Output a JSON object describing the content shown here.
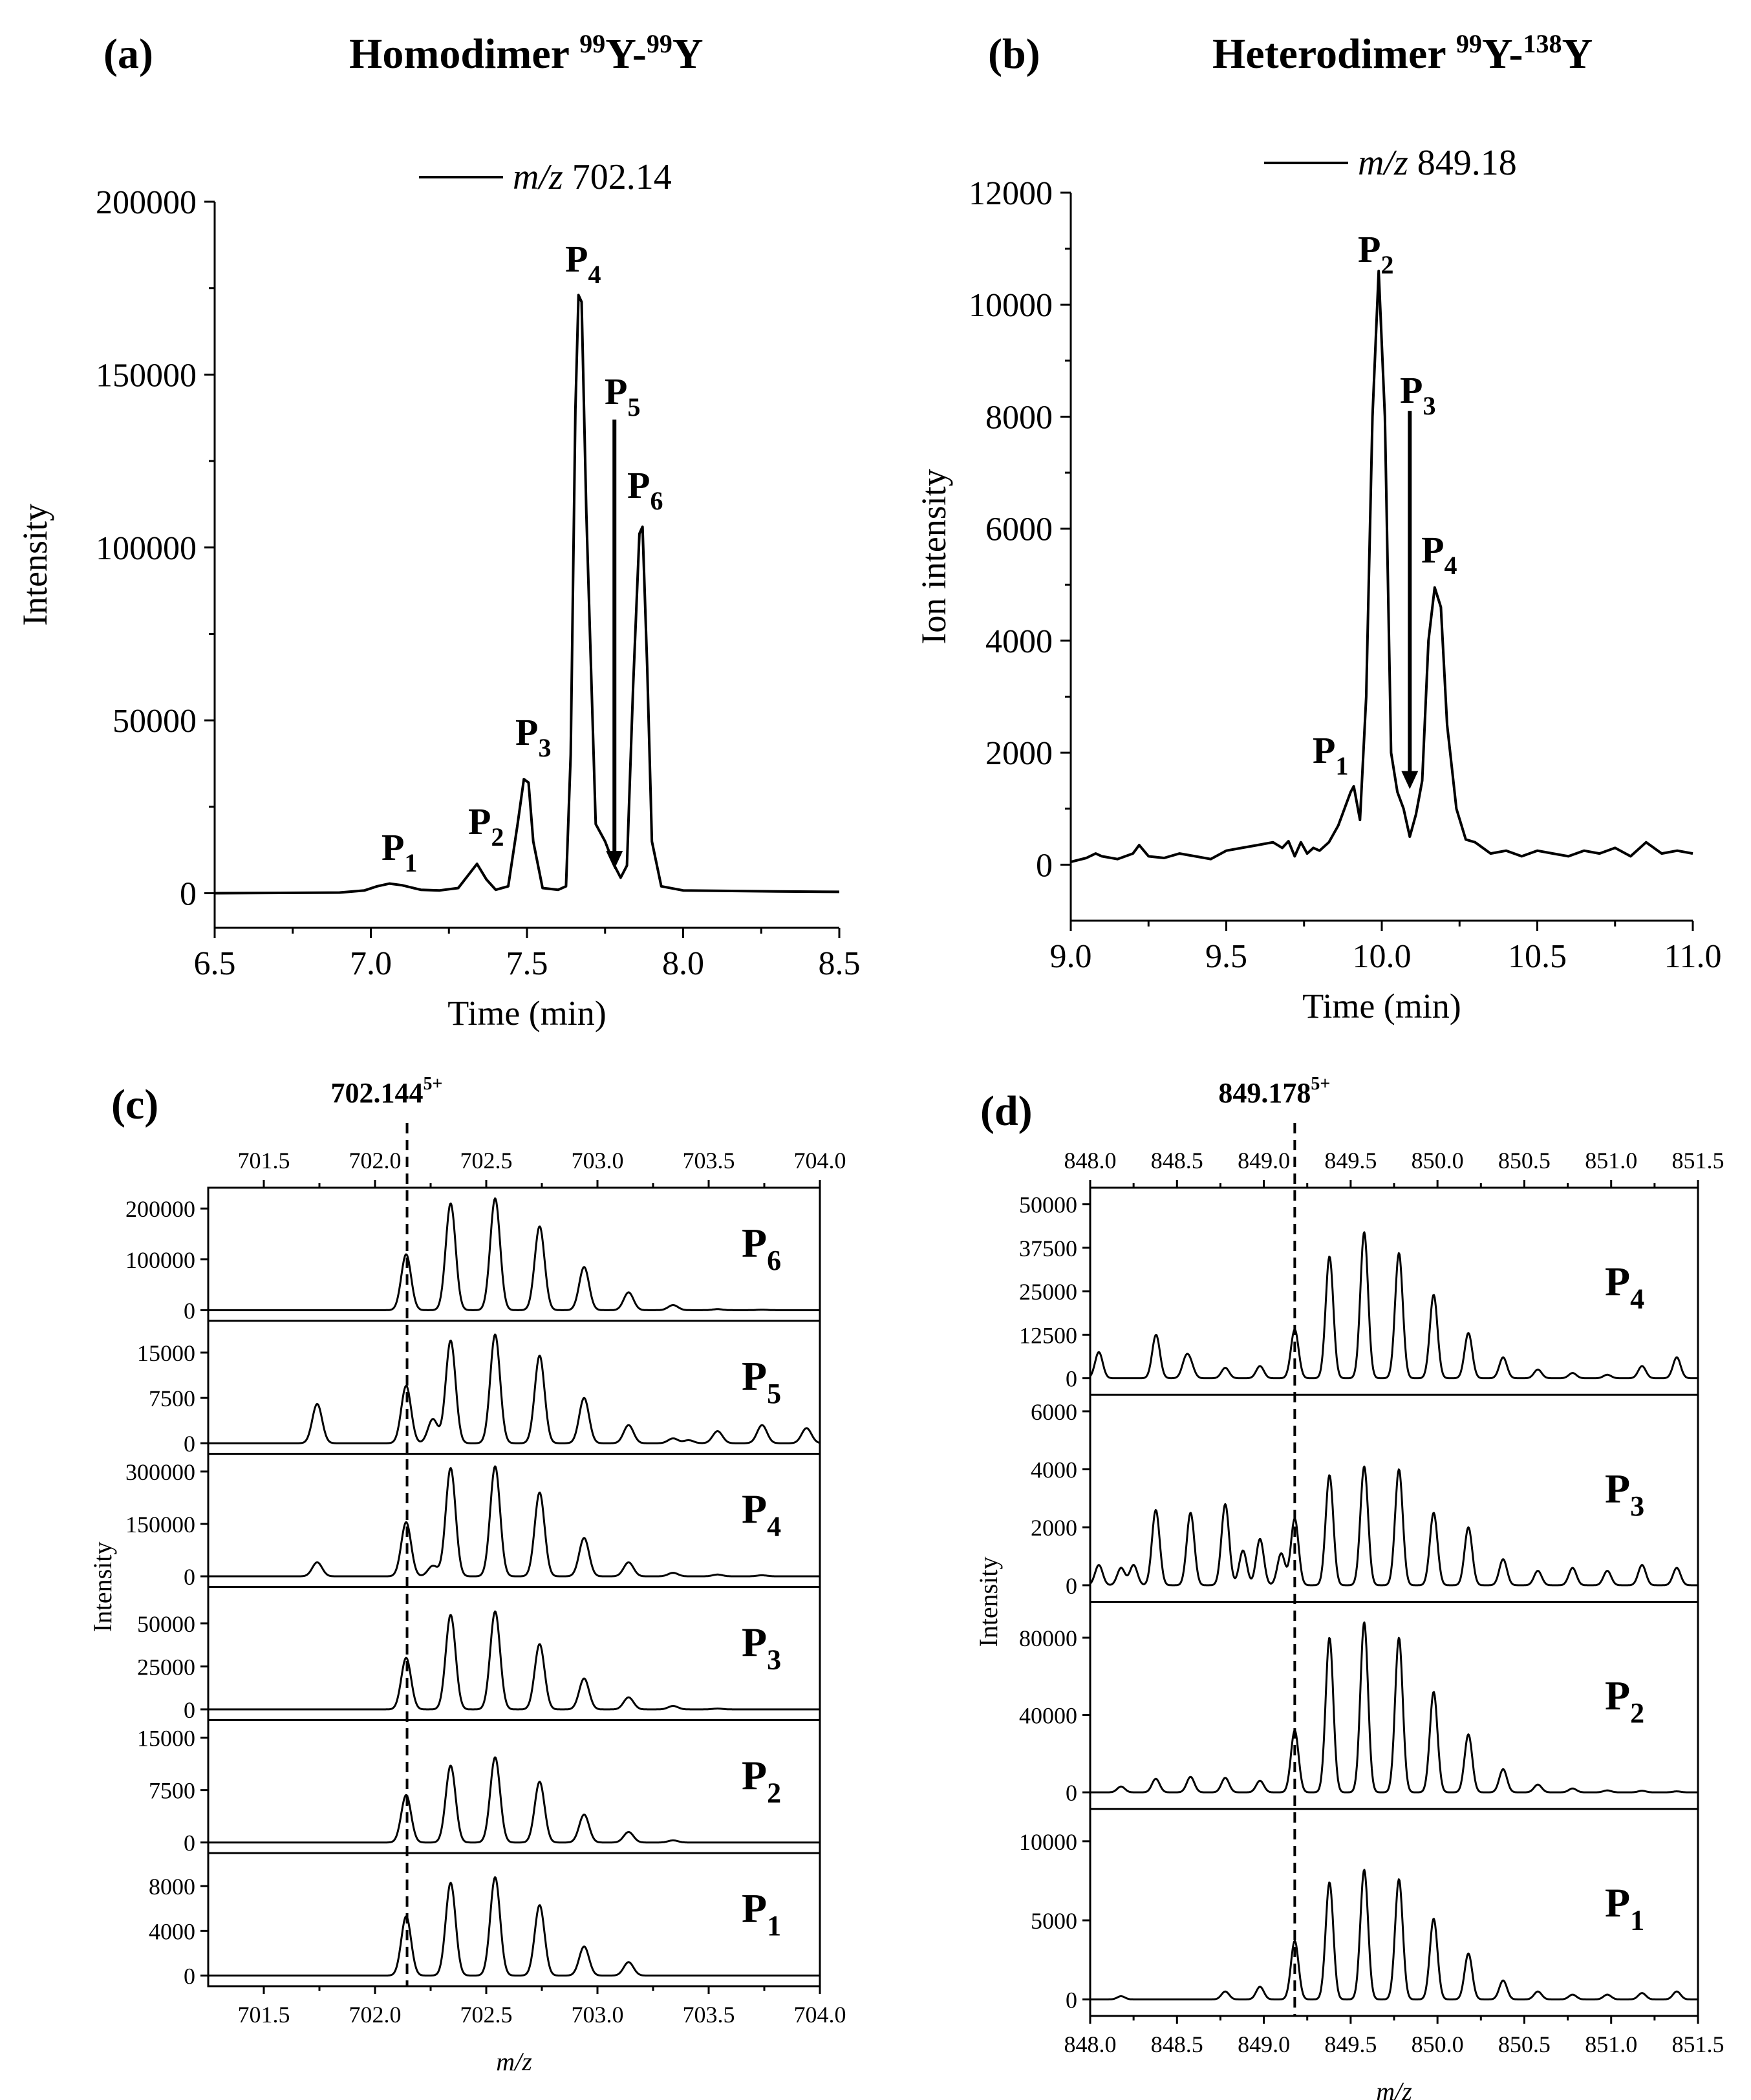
{
  "chart_data": [
    {
      "id": "a",
      "panel_label": "(a)",
      "type": "line",
      "title": {
        "prefix": "Homodimer ",
        "iso1": "99",
        "mid": "Y-",
        "iso2": "99",
        "suffix": "Y"
      },
      "xlabel": "Time (min)",
      "ylabel": "Intensity",
      "xlim": [
        6.5,
        8.5
      ],
      "ylim": [
        -10000,
        200000
      ],
      "xticks": [
        "6.5",
        "7.0",
        "7.5",
        "8.0",
        "8.5"
      ],
      "yticks": [
        "0",
        "50000",
        "100000",
        "150000",
        "200000"
      ],
      "legend": {
        "prefix": "m/z",
        "value": "702.14",
        "position": "top-center"
      },
      "series": [
        {
          "name": "m/z 702.14",
          "x": [
            6.5,
            6.9,
            6.98,
            7.02,
            7.06,
            7.1,
            7.16,
            7.22,
            7.28,
            7.31,
            7.34,
            7.37,
            7.4,
            7.44,
            7.47,
            7.49,
            7.505,
            7.52,
            7.55,
            7.6,
            7.625,
            7.64,
            7.655,
            7.665,
            7.675,
            7.69,
            7.72,
            7.75,
            7.78,
            7.8,
            7.82,
            7.84,
            7.86,
            7.87,
            7.885,
            7.9,
            7.93,
            8.0,
            8.3,
            8.5
          ],
          "y": [
            0,
            200,
            800,
            2000,
            2800,
            2300,
            1000,
            800,
            1500,
            5000,
            8500,
            4000,
            1000,
            2000,
            20000,
            33000,
            32000,
            15000,
            1500,
            1000,
            2000,
            40000,
            140000,
            173000,
            171000,
            110000,
            20000,
            15000,
            8000,
            4500,
            8000,
            60000,
            104000,
            106000,
            65000,
            15000,
            2000,
            800,
            500,
            400
          ]
        }
      ],
      "annotations": [
        {
          "label": "P",
          "sub": "1",
          "x": 7.06
        },
        {
          "label": "P",
          "sub": "2",
          "x": 7.34
        },
        {
          "label": "P",
          "sub": "3",
          "x": 7.5
        },
        {
          "label": "P",
          "sub": "4",
          "x": 7.67
        },
        {
          "label": "P",
          "sub": "5",
          "x": 7.78
        },
        {
          "label": "P",
          "sub": "6",
          "x": 7.86
        }
      ],
      "arrow": {
        "x": 7.78,
        "from_y": 137000,
        "to_y": 7000
      }
    },
    {
      "id": "b",
      "panel_label": "(b)",
      "type": "line",
      "title": {
        "prefix": "Heterodimer ",
        "iso1": "99",
        "mid": "Y-",
        "iso2": "138",
        "suffix": "Y"
      },
      "xlabel": "Time (min)",
      "ylabel": "Ion intensity",
      "xlim": [
        9.0,
        11.0
      ],
      "ylim": [
        -1000,
        12000
      ],
      "xticks": [
        "9.0",
        "9.5",
        "10.0",
        "10.5",
        "11.0"
      ],
      "yticks": [
        "0",
        "2000",
        "4000",
        "6000",
        "8000",
        "10000",
        "12000"
      ],
      "legend": {
        "prefix": "m/z",
        "value": "849.18",
        "position": "top-center"
      },
      "series": [
        {
          "name": "m/z 849.18",
          "x": [
            9.0,
            9.05,
            9.08,
            9.1,
            9.15,
            9.2,
            9.22,
            9.25,
            9.3,
            9.35,
            9.4,
            9.45,
            9.5,
            9.55,
            9.6,
            9.65,
            9.68,
            9.7,
            9.72,
            9.74,
            9.76,
            9.78,
            9.8,
            9.83,
            9.86,
            9.88,
            9.9,
            9.91,
            9.93,
            9.95,
            9.97,
            9.99,
            10.01,
            10.03,
            10.05,
            10.07,
            10.09,
            10.11,
            10.13,
            10.15,
            10.17,
            10.19,
            10.21,
            10.24,
            10.27,
            10.3,
            10.35,
            10.4,
            10.45,
            10.5,
            10.55,
            10.6,
            10.65,
            10.7,
            10.75,
            10.8,
            10.85,
            10.9,
            10.95,
            11.0
          ],
          "y": [
            50,
            120,
            200,
            150,
            100,
            200,
            350,
            150,
            120,
            200,
            150,
            100,
            250,
            300,
            350,
            400,
            300,
            420,
            150,
            400,
            200,
            300,
            250,
            400,
            700,
            1000,
            1300,
            1400,
            800,
            3000,
            8000,
            10600,
            8000,
            2000,
            1300,
            1000,
            500,
            900,
            1500,
            4000,
            4950,
            4600,
            2500,
            1000,
            450,
            400,
            200,
            250,
            150,
            250,
            200,
            150,
            250,
            200,
            300,
            150,
            400,
            200,
            250,
            200
          ]
        }
      ],
      "annotations": [
        {
          "label": "P",
          "sub": "1",
          "x": 9.91
        },
        {
          "label": "P",
          "sub": "2",
          "x": 9.99
        },
        {
          "label": "P",
          "sub": "3",
          "x": 10.09
        },
        {
          "label": "P",
          "sub": "4",
          "x": 10.17
        }
      ],
      "arrow": {
        "x": 10.09,
        "from_y": 8100,
        "to_y": 1350
      }
    },
    {
      "id": "c",
      "panel_label": "(c)",
      "type": "line",
      "stacked": true,
      "xlabel": "m/z",
      "ylabel": "Intensity",
      "xlim": [
        701.25,
        704.0
      ],
      "xticks": [
        "701.5",
        "702.0",
        "702.5",
        "703.0",
        "703.5",
        "704.0"
      ],
      "reference_mz": {
        "value": "702.144",
        "charge": "5+",
        "x": 702.144
      },
      "isotope_mz": [
        701.14,
        701.34,
        701.54,
        701.74,
        701.94,
        702.14,
        702.34,
        702.54,
        702.74,
        702.94,
        703.14,
        703.34,
        703.54,
        703.74,
        703.94
      ],
      "series": [
        {
          "name": "P6",
          "label": "P",
          "sub": "6",
          "ymax": 220000,
          "yticks": [
            "0",
            "100000",
            "200000"
          ],
          "peaks": [
            0,
            0,
            0,
            0,
            0,
            110000,
            210000,
            220000,
            165000,
            85000,
            35000,
            10000,
            2000,
            1000,
            0
          ]
        },
        {
          "name": "P5",
          "label": "P",
          "sub": "5",
          "ymax": 18500,
          "yticks": [
            "0",
            "7500",
            "15000"
          ],
          "peaks": [
            0,
            0,
            0,
            6500,
            0,
            9500,
            17000,
            18000,
            14500,
            7500,
            3000,
            800,
            2000,
            3000,
            2500
          ],
          "extra": [
            [
              702.26,
              4000
            ],
            [
              702.18,
              0
            ],
            [
              703.41,
              500
            ]
          ]
        },
        {
          "name": "P4",
          "label": "P",
          "sub": "4",
          "ymax": 320000,
          "yticks": [
            "0",
            "150000",
            "300000"
          ],
          "peaks": [
            0,
            0,
            0,
            40000,
            0,
            155000,
            310000,
            315000,
            240000,
            110000,
            40000,
            10000,
            5000,
            3000,
            0
          ],
          "extra": [
            [
              702.26,
              30000
            ]
          ]
        },
        {
          "name": "P3",
          "label": "P",
          "sub": "3",
          "ymax": 65000,
          "yticks": [
            "0",
            "25000",
            "50000"
          ],
          "peaks": [
            0,
            0,
            0,
            0,
            0,
            30000,
            55000,
            57000,
            38000,
            18000,
            7000,
            2000,
            500,
            0,
            0
          ]
        },
        {
          "name": "P2",
          "label": "P",
          "sub": "2",
          "ymax": 16000,
          "yticks": [
            "0",
            "7500",
            "15000"
          ],
          "peaks": [
            0,
            0,
            0,
            0,
            0,
            6800,
            11000,
            12200,
            8700,
            4000,
            1500,
            300,
            0,
            0,
            0
          ]
        },
        {
          "name": "P1",
          "label": "P",
          "sub": "1",
          "ymax": 10000,
          "yticks": [
            "0",
            "4000",
            "8000"
          ],
          "peaks": [
            0,
            0,
            0,
            0,
            0,
            5300,
            8300,
            8800,
            6300,
            2600,
            1200,
            0,
            0,
            0,
            0
          ]
        }
      ]
    },
    {
      "id": "d",
      "panel_label": "(d)",
      "type": "line",
      "stacked": true,
      "xlabel": "m/z",
      "ylabel": "Intensity",
      "xlim": [
        848.0,
        851.5
      ],
      "xticks": [
        "848.0",
        "848.5",
        "849.0",
        "849.5",
        "850.0",
        "850.5",
        "851.0",
        "851.5"
      ],
      "reference_mz": {
        "value": "849.178",
        "charge": "5+",
        "x": 849.178
      },
      "isotope_mz": [
        848.178,
        848.378,
        848.578,
        848.778,
        848.978,
        849.178,
        849.378,
        849.578,
        849.778,
        849.978,
        850.178,
        850.378,
        850.578,
        850.778,
        850.978,
        851.178,
        851.378
      ],
      "series": [
        {
          "name": "P4",
          "label": "P",
          "sub": "4",
          "ymax": 50000,
          "yticks": [
            "0",
            "12500",
            "25000",
            "37500",
            "50000"
          ],
          "peaks": [
            0,
            4000,
            3500,
            3000,
            3500,
            14000,
            35000,
            42000,
            36000,
            24000,
            13000,
            6000,
            2500,
            1500,
            1000,
            3500,
            6000
          ],
          "extra": [
            [
              848.05,
              7500
            ],
            [
              848.38,
              8500
            ],
            [
              848.55,
              5000
            ]
          ]
        },
        {
          "name": "P3",
          "label": "P",
          "sub": "3",
          "ymax": 6000,
          "yticks": [
            "0",
            "2000",
            "4000",
            "6000"
          ],
          "peaks": [
            600,
            2600,
            2500,
            2800,
            1600,
            2300,
            3800,
            4100,
            4000,
            2500,
            2000,
            900,
            500,
            600,
            500,
            700,
            600
          ],
          "extra": [
            [
              848.05,
              700
            ],
            [
              848.25,
              700
            ],
            [
              848.88,
              1200
            ],
            [
              849.1,
              1100
            ]
          ]
        },
        {
          "name": "P2",
          "label": "P",
          "sub": "2",
          "ymax": 90000,
          "yticks": [
            "0",
            "40000",
            "80000"
          ],
          "peaks": [
            3000,
            7000,
            8000,
            7500,
            6000,
            32000,
            80000,
            88000,
            80000,
            52000,
            30000,
            12000,
            4000,
            2000,
            1000,
            800,
            500
          ]
        },
        {
          "name": "P1",
          "label": "P",
          "sub": "1",
          "ymax": 11000,
          "yticks": [
            "0",
            "5000",
            "10000"
          ],
          "peaks": [
            200,
            0,
            0,
            500,
            800,
            3700,
            7400,
            8200,
            7600,
            5100,
            2900,
            1200,
            500,
            300,
            300,
            400,
            500
          ]
        }
      ]
    }
  ]
}
